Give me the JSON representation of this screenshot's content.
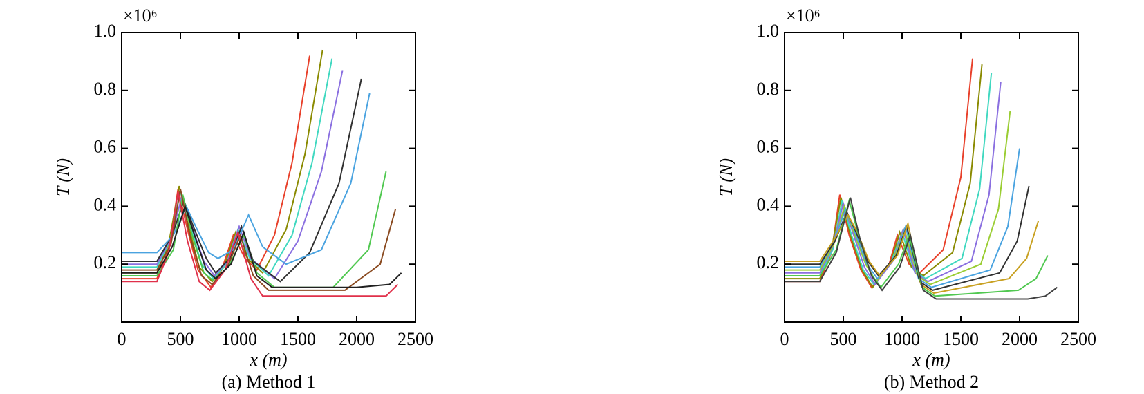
{
  "chart_data": [
    {
      "type": "line",
      "caption": "(a) Method 1",
      "xlabel": "x (m)",
      "ylabel": "T (N)",
      "multiplier": "×10⁶",
      "xlim": [
        0,
        2500
      ],
      "xticks": [
        0,
        500,
        1000,
        1500,
        2000,
        2500
      ],
      "ylim": [
        0,
        1
      ],
      "yticks": [
        0.2,
        0.4,
        0.6,
        0.8,
        {
          "value": 1,
          "label": "1.0"
        }
      ],
      "series": [
        {
          "color": "#e8402a",
          "x": [
            0,
            300,
            400,
            480,
            560,
            650,
            760,
            850,
            950,
            1050,
            1150,
            1300,
            1450,
            1600
          ],
          "values": [
            0.15,
            0.15,
            0.25,
            0.46,
            0.32,
            0.18,
            0.12,
            0.18,
            0.3,
            0.22,
            0.18,
            0.3,
            0.55,
            0.92
          ]
        },
        {
          "color": "#8a8a00",
          "x": [
            0,
            300,
            400,
            490,
            570,
            660,
            770,
            870,
            970,
            1070,
            1200,
            1400,
            1560,
            1710
          ],
          "values": [
            0.17,
            0.17,
            0.27,
            0.47,
            0.33,
            0.19,
            0.14,
            0.19,
            0.31,
            0.22,
            0.17,
            0.32,
            0.58,
            0.94
          ]
        },
        {
          "color": "#40d8c0",
          "x": [
            0,
            300,
            410,
            500,
            580,
            680,
            780,
            890,
            990,
            1090,
            1250,
            1450,
            1620,
            1790
          ],
          "values": [
            0.19,
            0.19,
            0.28,
            0.45,
            0.34,
            0.2,
            0.15,
            0.2,
            0.32,
            0.22,
            0.16,
            0.3,
            0.55,
            0.91
          ]
        },
        {
          "color": "#8a6fe0",
          "x": [
            0,
            300,
            420,
            510,
            590,
            700,
            790,
            900,
            1000,
            1100,
            1300,
            1500,
            1700,
            1880
          ],
          "values": [
            0.2,
            0.2,
            0.29,
            0.43,
            0.34,
            0.21,
            0.16,
            0.21,
            0.33,
            0.22,
            0.15,
            0.28,
            0.52,
            0.87
          ]
        },
        {
          "color": "#303030",
          "x": [
            0,
            300,
            430,
            530,
            610,
            720,
            800,
            920,
            1020,
            1120,
            1350,
            1600,
            1850,
            2040
          ],
          "values": [
            0.21,
            0.21,
            0.3,
            0.42,
            0.33,
            0.22,
            0.17,
            0.22,
            0.33,
            0.21,
            0.14,
            0.24,
            0.48,
            0.84
          ]
        },
        {
          "color": "#4aa3e0",
          "x": [
            0,
            300,
            440,
            550,
            630,
            740,
            820,
            950,
            1080,
            1200,
            1400,
            1700,
            1950,
            2110
          ],
          "values": [
            0.24,
            0.24,
            0.3,
            0.4,
            0.33,
            0.24,
            0.22,
            0.25,
            0.37,
            0.26,
            0.2,
            0.25,
            0.48,
            0.79
          ]
        },
        {
          "color": "#50c850",
          "x": [
            0,
            300,
            440,
            520,
            600,
            700,
            790,
            920,
            1040,
            1150,
            1300,
            1800,
            2100,
            2250
          ],
          "values": [
            0.16,
            0.16,
            0.25,
            0.44,
            0.3,
            0.17,
            0.14,
            0.2,
            0.3,
            0.17,
            0.12,
            0.12,
            0.25,
            0.52
          ]
        },
        {
          "color": "#8a4a20",
          "x": [
            0,
            300,
            420,
            500,
            580,
            680,
            770,
            900,
            1010,
            1120,
            1250,
            1900,
            2200,
            2330
          ],
          "values": [
            0.18,
            0.18,
            0.27,
            0.46,
            0.3,
            0.16,
            0.13,
            0.19,
            0.3,
            0.16,
            0.11,
            0.11,
            0.2,
            0.39
          ]
        },
        {
          "color": "#e0304a",
          "x": [
            0,
            300,
            400,
            480,
            560,
            660,
            750,
            880,
            990,
            1100,
            1200,
            2000,
            2250,
            2350
          ],
          "values": [
            0.14,
            0.14,
            0.24,
            0.45,
            0.28,
            0.14,
            0.11,
            0.18,
            0.31,
            0.15,
            0.09,
            0.09,
            0.09,
            0.13
          ]
        },
        {
          "color": "#202020",
          "x": [
            0,
            300,
            430,
            540,
            620,
            720,
            800,
            930,
            1040,
            1150,
            1280,
            2000,
            2280,
            2380
          ],
          "values": [
            0.17,
            0.17,
            0.26,
            0.4,
            0.3,
            0.18,
            0.15,
            0.2,
            0.31,
            0.16,
            0.12,
            0.12,
            0.13,
            0.17
          ]
        }
      ]
    },
    {
      "type": "line",
      "caption": "(b) Method 2",
      "xlabel": "x (m)",
      "ylabel": "T (N)",
      "multiplier": "×10⁶",
      "xlim": [
        0,
        2500
      ],
      "xticks": [
        0,
        500,
        1000,
        1500,
        2000,
        2500
      ],
      "ylim": [
        0,
        1
      ],
      "yticks": [
        0.2,
        0.4,
        0.6,
        0.8,
        {
          "value": 1,
          "label": "1.0"
        }
      ],
      "series": [
        {
          "color": "#e8402a",
          "x": [
            0,
            300,
            400,
            470,
            550,
            650,
            740,
            890,
            960,
            1060,
            1150,
            1350,
            1500,
            1600
          ],
          "values": [
            0.14,
            0.14,
            0.24,
            0.44,
            0.3,
            0.18,
            0.12,
            0.2,
            0.3,
            0.2,
            0.17,
            0.25,
            0.5,
            0.91
          ]
        },
        {
          "color": "#8a8a00",
          "x": [
            0,
            300,
            400,
            480,
            560,
            660,
            750,
            900,
            980,
            1080,
            1180,
            1430,
            1580,
            1680
          ],
          "values": [
            0.15,
            0.15,
            0.25,
            0.43,
            0.3,
            0.18,
            0.12,
            0.2,
            0.31,
            0.19,
            0.16,
            0.24,
            0.48,
            0.89
          ]
        },
        {
          "color": "#40d8c0",
          "x": [
            0,
            300,
            410,
            490,
            570,
            670,
            760,
            910,
            1000,
            1100,
            1200,
            1510,
            1660,
            1760
          ],
          "values": [
            0.16,
            0.16,
            0.25,
            0.42,
            0.3,
            0.18,
            0.13,
            0.21,
            0.31,
            0.18,
            0.15,
            0.22,
            0.46,
            0.86
          ]
        },
        {
          "color": "#8a6fe0",
          "x": [
            0,
            300,
            410,
            500,
            580,
            680,
            770,
            920,
            1010,
            1110,
            1220,
            1590,
            1740,
            1840
          ],
          "values": [
            0.17,
            0.17,
            0.26,
            0.41,
            0.31,
            0.19,
            0.13,
            0.21,
            0.32,
            0.17,
            0.14,
            0.21,
            0.44,
            0.83
          ]
        },
        {
          "color": "#9acd32",
          "x": [
            0,
            300,
            420,
            510,
            590,
            690,
            780,
            930,
            1020,
            1130,
            1240,
            1670,
            1820,
            1920
          ],
          "values": [
            0.18,
            0.18,
            0.27,
            0.4,
            0.31,
            0.2,
            0.14,
            0.22,
            0.32,
            0.16,
            0.13,
            0.2,
            0.39,
            0.73
          ]
        },
        {
          "color": "#4aa3e0",
          "x": [
            0,
            300,
            420,
            520,
            600,
            700,
            790,
            940,
            1030,
            1140,
            1250,
            1750,
            1900,
            2000
          ],
          "values": [
            0.19,
            0.19,
            0.28,
            0.39,
            0.31,
            0.2,
            0.15,
            0.22,
            0.33,
            0.15,
            0.12,
            0.18,
            0.33,
            0.6
          ]
        },
        {
          "color": "#303030",
          "x": [
            0,
            300,
            430,
            530,
            610,
            710,
            800,
            950,
            1040,
            1150,
            1260,
            1830,
            1980,
            2080
          ],
          "values": [
            0.2,
            0.2,
            0.28,
            0.38,
            0.31,
            0.21,
            0.16,
            0.23,
            0.33,
            0.14,
            0.11,
            0.17,
            0.28,
            0.47
          ]
        },
        {
          "color": "#c8a020",
          "x": [
            0,
            300,
            430,
            540,
            620,
            720,
            810,
            960,
            1050,
            1160,
            1270,
            1910,
            2060,
            2160
          ],
          "values": [
            0.21,
            0.21,
            0.29,
            0.37,
            0.31,
            0.21,
            0.16,
            0.23,
            0.34,
            0.13,
            0.1,
            0.15,
            0.22,
            0.35
          ]
        },
        {
          "color": "#50c850",
          "x": [
            0,
            300,
            440,
            550,
            630,
            730,
            820,
            970,
            1060,
            1170,
            1280,
            1990,
            2140,
            2240
          ],
          "values": [
            0.16,
            0.16,
            0.25,
            0.42,
            0.3,
            0.17,
            0.12,
            0.2,
            0.3,
            0.12,
            0.09,
            0.11,
            0.15,
            0.23
          ]
        },
        {
          "color": "#404040",
          "x": [
            0,
            300,
            440,
            560,
            640,
            740,
            830,
            980,
            1070,
            1180,
            1290,
            2070,
            2220,
            2320
          ],
          "values": [
            0.14,
            0.14,
            0.24,
            0.43,
            0.29,
            0.16,
            0.11,
            0.19,
            0.3,
            0.11,
            0.08,
            0.08,
            0.09,
            0.12
          ]
        }
      ]
    }
  ]
}
